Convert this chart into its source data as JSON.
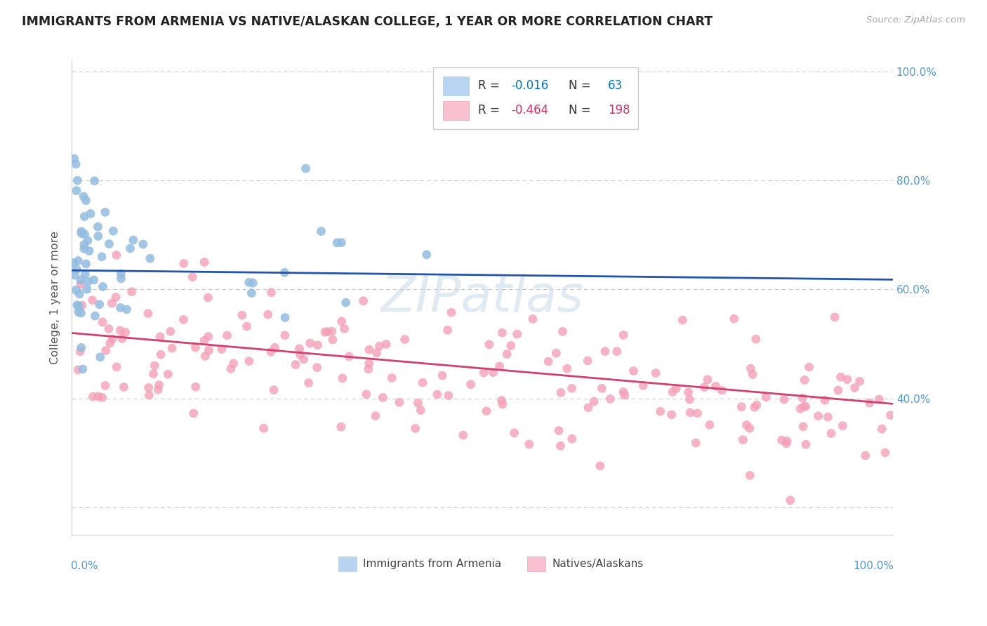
{
  "title": "IMMIGRANTS FROM ARMENIA VS NATIVE/ALASKAN COLLEGE, 1 YEAR OR MORE CORRELATION CHART",
  "source": "Source: ZipAtlas.com",
  "ylabel": "College, 1 year or more",
  "blue_R": -0.016,
  "blue_N": 63,
  "pink_R": -0.464,
  "pink_N": 198,
  "blue_color": "#92bce0",
  "pink_color": "#f4a0b8",
  "blue_line_color": "#2255aa",
  "pink_line_color": "#d04070",
  "blue_legend_color": "#b8d4f0",
  "pink_legend_color": "#f8c0d0",
  "watermark": "ZIPatlas",
  "background_color": "#ffffff",
  "grid_color": "#c8c8c8",
  "title_color": "#222222",
  "axis_color": "#5599cc",
  "right_ytick_values": [
    0.4,
    0.6,
    0.8,
    1.0
  ],
  "right_ytick_labels": [
    "40.0%",
    "60.0%",
    "80.0%",
    "100.0%"
  ],
  "xlim": [
    0.0,
    1.0
  ],
  "ylim": [
    0.15,
    1.02
  ]
}
